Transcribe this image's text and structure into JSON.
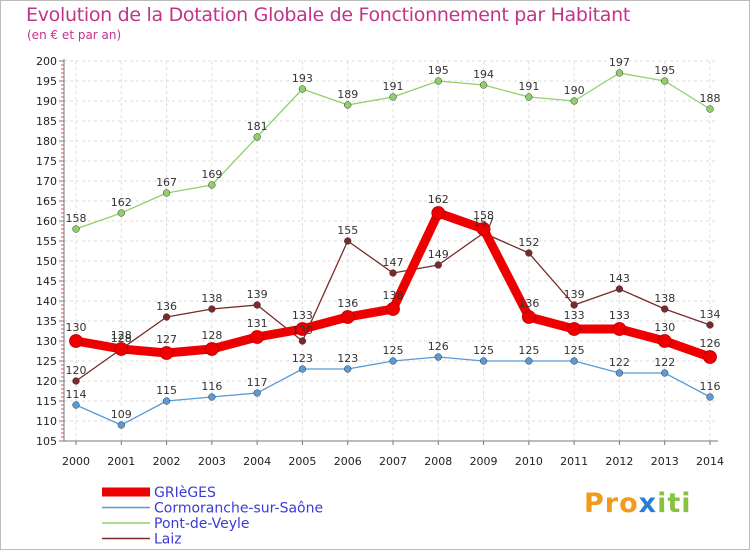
{
  "chart_data": {
    "type": "line",
    "title": "Evolution de la Dotation Globale de Fonctionnement par Habitant",
    "subtitle": "(en € et par an)",
    "x": [
      "2000",
      "2001",
      "2002",
      "2003",
      "2004",
      "2005",
      "2006",
      "2007",
      "2008",
      "2009",
      "2010",
      "2011",
      "2012",
      "2013",
      "2014"
    ],
    "ylim": [
      105,
      200
    ],
    "yticks": [
      105,
      110,
      115,
      120,
      125,
      130,
      135,
      140,
      145,
      150,
      155,
      160,
      165,
      170,
      175,
      180,
      185,
      190,
      195,
      200
    ],
    "grid": true,
    "legend_position": "bottom-left",
    "series": [
      {
        "name": "GRIèGES",
        "color": "#ee0000",
        "values": [
          130,
          128,
          127,
          128,
          131,
          133,
          136,
          138,
          162,
          158,
          136,
          133,
          133,
          130,
          126
        ]
      },
      {
        "name": "Cormoranche-sur-Saône",
        "color": "#5b9bd5",
        "values": [
          114,
          109,
          115,
          116,
          117,
          123,
          123,
          125,
          126,
          125,
          125,
          125,
          122,
          122,
          116
        ]
      },
      {
        "name": "Pont-de-Veyle",
        "color": "#8fd06b",
        "values": [
          158,
          162,
          167,
          169,
          181,
          193,
          189,
          191,
          195,
          194,
          191,
          190,
          197,
          195,
          188
        ]
      },
      {
        "name": "Laiz",
        "color": "#7a2a2a",
        "values": [
          120,
          128,
          136,
          138,
          139,
          130,
          155,
          147,
          149,
          157,
          152,
          139,
          143,
          138,
          134
        ]
      }
    ]
  },
  "logo": {
    "part1": "Pro",
    "part2": "x",
    "part3": "iti",
    "color1": "#f29a1a",
    "color2": "#2a7fd4",
    "color3": "#86c440"
  }
}
